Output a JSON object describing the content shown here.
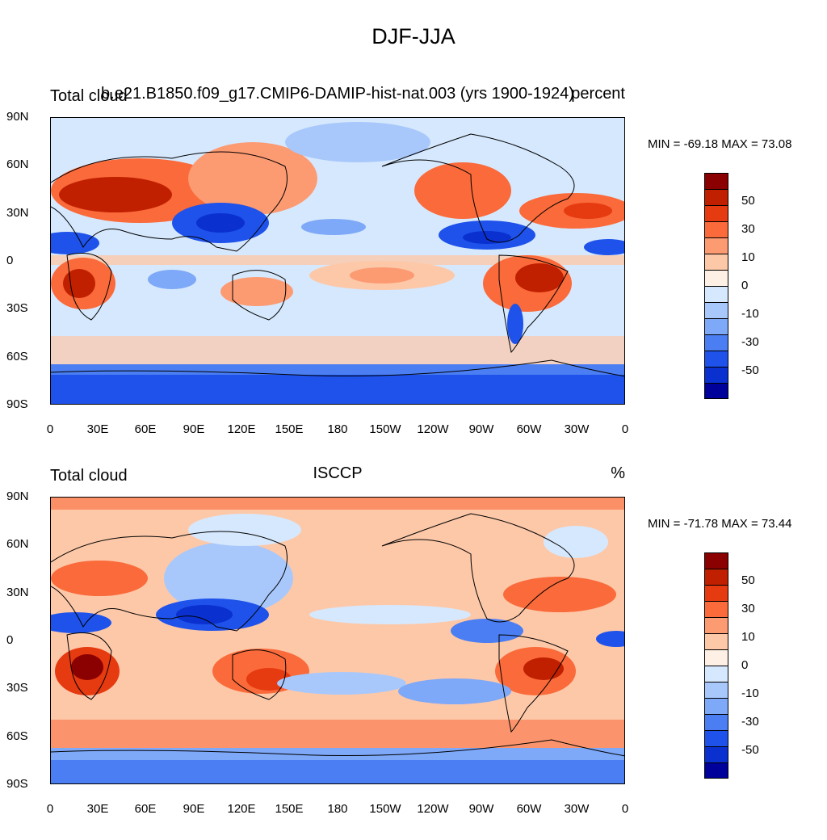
{
  "title": "DJF-JJA",
  "panels": [
    {
      "left_label": "Total cloud",
      "center_label": "b.e21.B1850.f09_g17.CMIP6-DAMIP-hist-nat.003 (yrs 1900-1924)",
      "right_label": "percent",
      "stats": "MIN = -69.18 MAX =  73.08"
    },
    {
      "left_label": "Total cloud",
      "center_label": "ISCCP",
      "right_label": "%",
      "stats": "MIN = -71.78 MAX =  73.44"
    }
  ],
  "lat_ticks": [
    "90N",
    "60N",
    "30N",
    "0",
    "30S",
    "60S",
    "90S"
  ],
  "lon_ticks": [
    "0",
    "30E",
    "60E",
    "90E",
    "120E",
    "150E",
    "180",
    "150W",
    "120W",
    "90W",
    "60W",
    "30W",
    "0"
  ],
  "colorbar": {
    "labels": [
      "50",
      "30",
      "10",
      "0",
      "-10",
      "-30",
      "-50"
    ],
    "colors": [
      "#8b0000",
      "#c02000",
      "#e63a10",
      "#fa6a3a",
      "#fc9a72",
      "#fdc8a8",
      "#fef0e4",
      "#d6e8fd",
      "#a8c8fb",
      "#7ea8f8",
      "#4a7ef2",
      "#1e52ea",
      "#0a30d0",
      "#00009a"
    ]
  },
  "colors": {
    "land_outline": "#000000",
    "background": "#ffffff"
  }
}
